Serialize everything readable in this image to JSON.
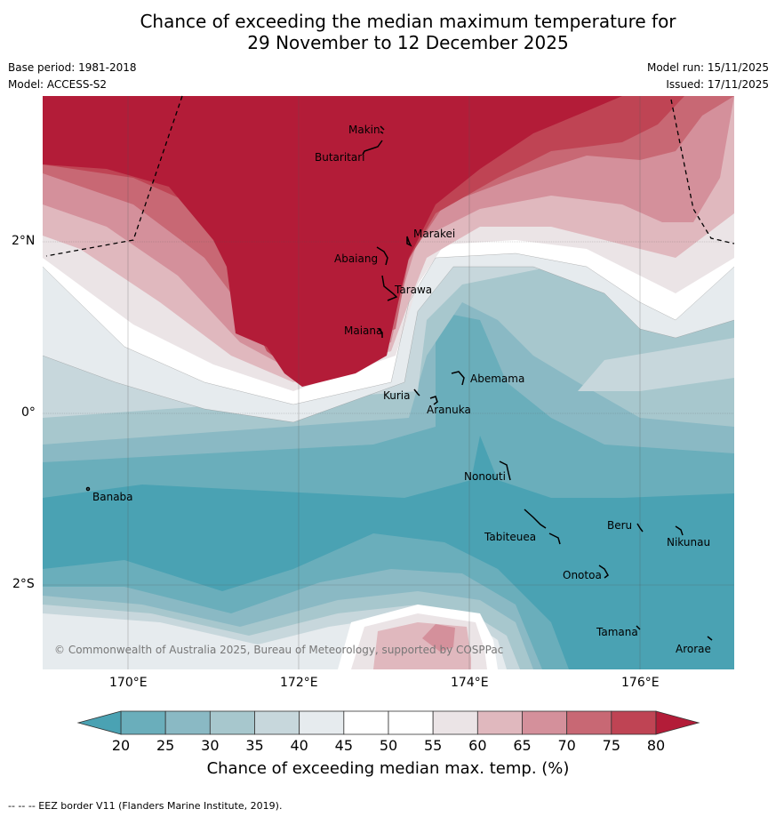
{
  "title": {
    "line1": "Chance of exceeding the median maximum temperature for",
    "line2": "29 November to 12 December 2025"
  },
  "meta": {
    "base_period": "Base period: 1981-2018",
    "model": "Model: ACCESS-S2",
    "model_run": "Model run: 15/11/2025",
    "issued": "Issued: 17/11/2025"
  },
  "axes": {
    "lon_ticks": [
      "170°E",
      "172°E",
      "174°E",
      "176°E"
    ],
    "lat_ticks": [
      "2°N",
      "0°",
      "2°S"
    ]
  },
  "places": [
    "Makin",
    "Butaritari",
    "Marakei",
    "Abaiang",
    "Tarawa",
    "Maiana",
    "Kuria",
    "Abemama",
    "Aranuka",
    "Nonouti",
    "Banaba",
    "Tabiteuea",
    "Beru",
    "Nikunau",
    "Onotoa",
    "Tamana",
    "Arorae"
  ],
  "copyright": "© Commonwealth of Australia 2025, Bureau of Meteorology, supported by COSPPac",
  "colorbar": {
    "ticks": [
      "20",
      "25",
      "30",
      "35",
      "40",
      "45",
      "50",
      "55",
      "60",
      "65",
      "70",
      "75",
      "80"
    ],
    "colors": [
      "#6aaebb",
      "#8ab9c4",
      "#a7c7cd",
      "#c7d7dc",
      "#e6ebee",
      "#ffffff",
      "#ffffff",
      "#ebe4e6",
      "#e0b8be",
      "#d4909b",
      "#c86874",
      "#bf4454"
    ],
    "under_color": "#4aa2b3",
    "over_color": "#b31c38",
    "label": "Chance of exceeding median max. temp. (%)"
  },
  "footer": "--  --  -- EEZ border V11 (Flanders Marine Institute, 2019)."
}
